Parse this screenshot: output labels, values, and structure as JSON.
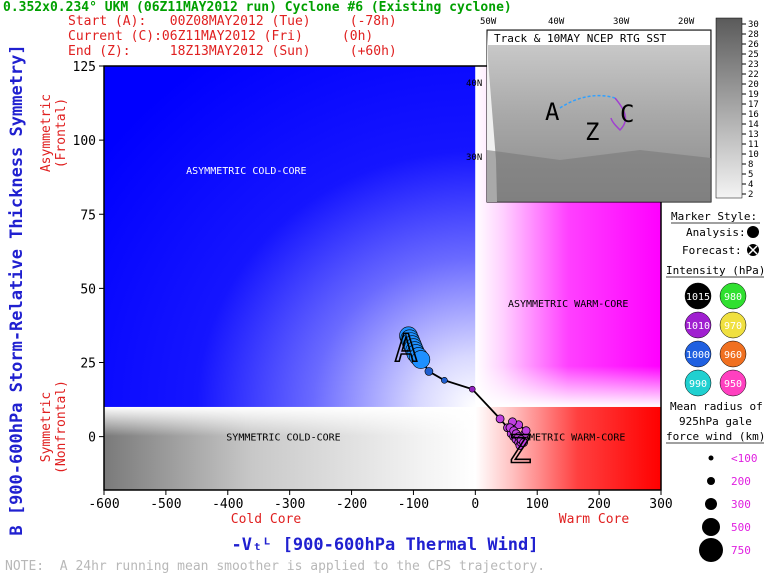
{
  "header": {
    "title": "0.352x0.234° UKM (06Z11MAY2012 run) Cyclone #6 (Existing cyclone)",
    "start": "Start (A):   00Z08MAY2012 (Tue)     (-78h)",
    "current": "Current (C):06Z11MAY2012 (Fri)     (0h)",
    "end": "End (Z):     18Z13MAY2012 (Sun)     (+60h)"
  },
  "footnote": "NOTE:  A 24hr running mean smoother is applied to the CPS trajectory.",
  "colors": {
    "title": "#00a000",
    "subtitle": "#e02020",
    "axis_title": "#2020d0",
    "side_label": "#e02020",
    "cold_asym": "#1010ff",
    "warm_asym": "#ff00ff",
    "cold_sym": "#808080",
    "warm_sym": "#ff0000",
    "track": "#000000"
  },
  "chart_data": {
    "type": "scatter",
    "xlabel": "-Vₜᴸ [900-600hPa Thermal Wind]",
    "ylabel": "B [900-600hPa Storm-Relative Thickness Symmetry]",
    "xlim": [
      -600,
      300
    ],
    "ylim": [
      -18,
      125
    ],
    "x_ticks": [
      -600,
      -500,
      -400,
      -300,
      -200,
      -100,
      0,
      100,
      200,
      300
    ],
    "y_ticks": [
      0,
      25,
      50,
      75,
      100,
      125
    ],
    "x_side_labels": {
      "left": "Cold Core",
      "right": "Warm Core"
    },
    "y_side_labels": {
      "top": "Asymmetric\n(Frontal)",
      "bottom": "Symmetric\n(Nonfrontal)"
    },
    "quadrant_labels": [
      {
        "text": "ASYMMETRIC COLD-CORE",
        "x": -370,
        "y": 90
      },
      {
        "text": "ASYMMETRIC WARM-CORE",
        "x": 150,
        "y": 45
      },
      {
        "text": "SYMMETRIC COLD-CORE",
        "x": -310,
        "y": 0
      },
      {
        "text": "SYMMETRIC WARM-CORE",
        "x": 150,
        "y": 0
      }
    ],
    "divider_y": 10,
    "track_markers": [
      {
        "label": "A",
        "x": -112,
        "y": 30
      },
      {
        "label": "Z",
        "x": 72,
        "y": -4
      }
    ],
    "series": [
      {
        "name": "Analysis",
        "x": [
          -108,
          -106,
          -104,
          -102,
          -100,
          -98,
          -96,
          -92,
          -88,
          -75,
          -50,
          -5
        ],
        "y": [
          34,
          33,
          32,
          31,
          30,
          29,
          28,
          27,
          26,
          22,
          19,
          16
        ],
        "colors": [
          "#1e90ff",
          "#1e90ff",
          "#1e90ff",
          "#1e90ff",
          "#1e90ff",
          "#1e90ff",
          "#1e90ff",
          "#1e90ff",
          "#1e90ff",
          "#1f5fd0",
          "#1f5fd0",
          "#9020c0"
        ],
        "sizes": [
          9,
          9,
          9,
          9,
          9,
          9,
          9,
          9,
          9,
          4,
          3,
          3
        ]
      },
      {
        "name": "Forecast",
        "x": [
          40,
          52,
          58,
          62,
          66,
          70,
          72,
          74,
          76,
          78,
          80,
          82,
          70,
          60,
          56,
          62,
          66,
          70,
          74,
          78
        ],
        "y": [
          6,
          3,
          1,
          0,
          -1,
          -2,
          -3,
          -2,
          -1,
          0,
          1,
          2,
          4,
          5,
          3,
          2,
          1,
          0,
          -1,
          -2
        ],
        "colors": [
          "#c040e0",
          "#c040e0",
          "#c040e0",
          "#c040e0",
          "#c040e0",
          "#c040e0",
          "#c040e0",
          "#c040e0",
          "#c040e0",
          "#c040e0",
          "#c040e0",
          "#c040e0",
          "#c040e0",
          "#c040e0",
          "#c040e0",
          "#c040e0",
          "#c040e0",
          "#c040e0",
          "#c040e0",
          "#c040e0"
        ],
        "sizes": [
          4,
          4,
          4,
          4,
          4,
          4,
          4,
          4,
          4,
          4,
          4,
          4,
          4,
          4,
          4,
          4,
          4,
          4,
          4,
          4
        ]
      }
    ]
  },
  "inset": {
    "title": "Track & 10MAY NCEP RTG SST",
    "lon_labels": [
      "50W",
      "40W",
      "30W",
      "20W"
    ],
    "lat_labels": [
      "40N",
      "30N"
    ],
    "colorbar_ticks": [
      "30",
      "28",
      "26",
      "25",
      "23",
      "22",
      "20",
      "19",
      "17",
      "16",
      "14",
      "13",
      "11",
      "10",
      "8",
      "5",
      "4",
      "2"
    ],
    "letters": {
      "a": "A",
      "z": "Z",
      "c": "C"
    }
  },
  "legend": {
    "marker_style_title": "Marker Style:",
    "analysis_label": "Analysis:",
    "forecast_label": "Forecast:",
    "intensity_title": "Intensity (hPa):",
    "intensity": [
      {
        "label": "1015",
        "color": "#000000",
        "text_color": "#ffffff"
      },
      {
        "label": "980",
        "color": "#30e030",
        "text_color": "#ffffff"
      },
      {
        "label": "1010",
        "color": "#a020d0",
        "text_color": "#ffffff"
      },
      {
        "label": "970",
        "color": "#f0e040",
        "text_color": "#ffffff"
      },
      {
        "label": "1000",
        "color": "#2060e0",
        "text_color": "#ffffff"
      },
      {
        "label": "960",
        "color": "#f07020",
        "text_color": "#ffffff"
      },
      {
        "label": "990",
        "color": "#20d0d0",
        "text_color": "#ffffff"
      },
      {
        "label": "950",
        "color": "#ff40c0",
        "text_color": "#ffffff"
      }
    ],
    "radius_title_1": "Mean radius of",
    "radius_title_2": "925hPa gale",
    "radius_title_3": "force wind (km):",
    "radius": [
      {
        "label": "<100",
        "r": 2.5
      },
      {
        "label": "200",
        "r": 4
      },
      {
        "label": "300",
        "r": 6
      },
      {
        "label": "500",
        "r": 9
      },
      {
        "label": "750",
        "r": 12
      }
    ]
  }
}
